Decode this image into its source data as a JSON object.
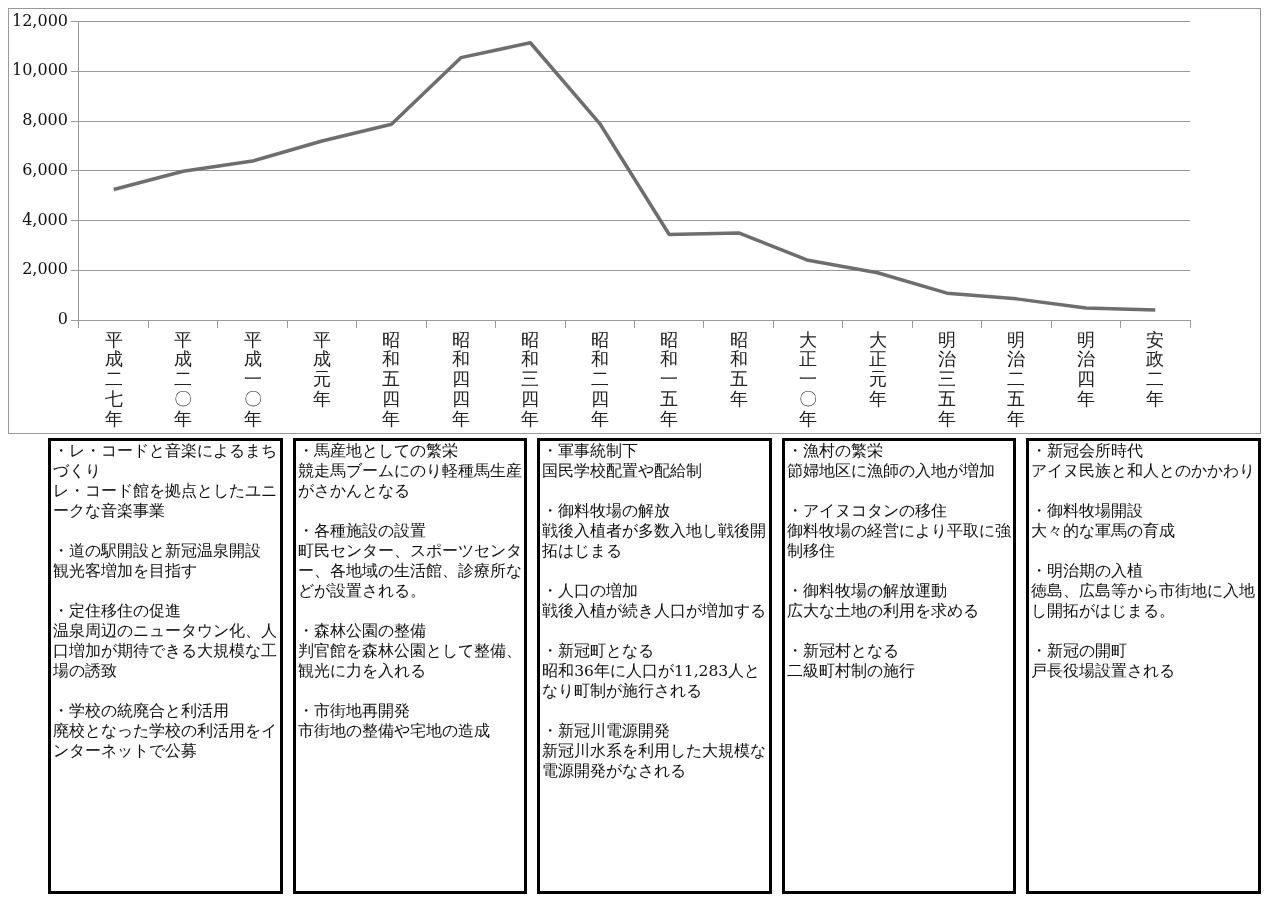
{
  "chart_data": [
    {
      "type": "line",
      "categories": [
        "平成二七年",
        "平成二〇年",
        "平成一〇年",
        "平成元年",
        "昭和五四年",
        "昭和四四年",
        "昭和三四年",
        "昭和二四年",
        "昭和一五年",
        "昭和五年",
        "大正一〇年",
        "大正元年",
        "明治三五年",
        "明治二五年",
        "明治四年",
        "安政二年"
      ],
      "series": [
        {
          "color": "#6e6e6e",
          "values": [
            5250,
            5980,
            6390,
            7200,
            7870,
            10550,
            11150,
            7900,
            3440,
            3500,
            2400,
            1900,
            1080,
            850,
            480,
            400
          ]
        }
      ],
      "ylim": [
        0,
        12000
      ],
      "yticks": [
        {
          "value": 0,
          "label": "0"
        },
        {
          "value": 2000,
          "label": "2,000"
        },
        {
          "value": 4000,
          "label": "4,000"
        },
        {
          "value": 6000,
          "label": "6,000"
        },
        {
          "value": 8000,
          "label": "8,000"
        },
        {
          "value": 10000,
          "label": "10,000"
        },
        {
          "value": 12000,
          "label": "12,000"
        }
      ],
      "grid": "y",
      "legend": false,
      "marker": "none",
      "line_style": "solid"
    },
    {
      "type": "other",
      "annotations": [
        "・レ・コードと音楽によるまちづくり",
        "レ・コード館を拠点としたユニークな音楽事業",
        "・道の駅開設と新冠温泉開設",
        "観光客増加を目指す",
        "・定住移住の促進",
        "温泉周辺のニュータウン化、人口増加が期待できる大規模な工場の誘致",
        "・学校の統廃合と利活用",
        "廃校となった学校の利活用をインターネットで公募"
      ]
    },
    {
      "type": "other",
      "annotations": [
        "・馬産地としての繁栄",
        "競走馬ブームにのり軽種馬生産がさかんとなる",
        "・各種施設の設置",
        "町民センター、スポーツセンター、各地域の生活館、診療所などが設置される。",
        "・森林公園の整備",
        "判官館を森林公園として整備、観光に力を入れる",
        "・市街地再開発",
        "市街地の整備や宅地の造成"
      ]
    },
    {
      "type": "other",
      "annotations": [
        "・軍事統制下",
        "国民学校配置や配給制",
        "・御料牧場の解放",
        "戦後入植者が多数入地し戦後開拓はじまる",
        "・人口の増加",
        "戦後入植が続き人口が増加する",
        "・新冠町となる",
        "昭和36年に人口が11,283人となり町制が施行される",
        "・新冠川電源開発",
        "新冠川水系を利用した大規模な電源開発がなされる"
      ]
    },
    {
      "type": "other",
      "annotations": [
        "・漁村の繁栄",
        "節婦地区に漁師の入地が増加",
        "・アイヌコタンの移住",
        "御料牧場の経営により平取に強制移住",
        "・御料牧場の解放運動",
        "広大な土地の利用を求める",
        "・新冠村となる",
        "二級町村制の施行"
      ]
    },
    {
      "type": "other",
      "annotations": [
        "・新冠会所時代",
        "アイヌ民族と和人とのかかわり",
        "・御料牧場開設",
        "大々的な軍馬の育成",
        "・明治期の入植",
        "徳島、広島等から市街地に入地し開拓がはじまる。",
        "・新冠の開町",
        "戸長役場設置される"
      ]
    }
  ]
}
